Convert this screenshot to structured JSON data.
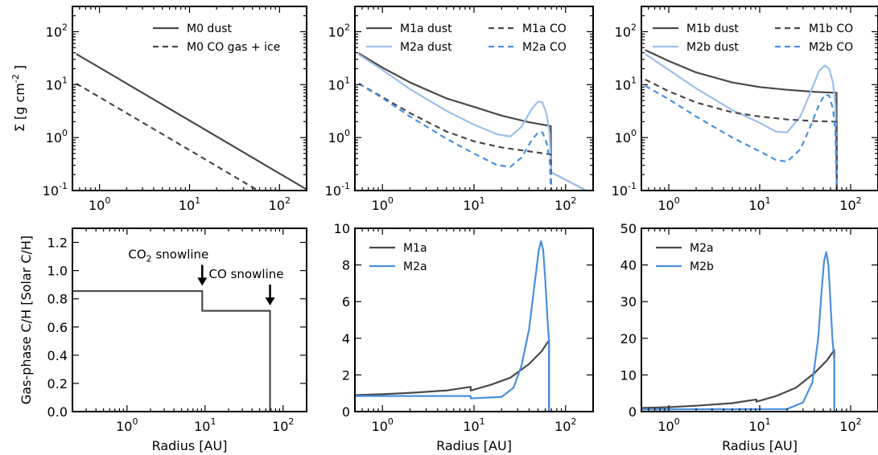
{
  "colors": {
    "dark": "#4a4a4a",
    "light": "#9dc0ea",
    "blue": "#4a8fe0"
  },
  "chart_data": [
    {
      "type": "line",
      "panel": "top-1",
      "xscale": "log",
      "yscale": "log",
      "xlim": [
        0.5,
        200
      ],
      "ylim": [
        0.1,
        300
      ],
      "xticks": [
        1,
        10,
        100
      ],
      "xticklabels": [
        "10^0",
        "10^1",
        "10^2"
      ],
      "yticks": [
        0.1,
        1,
        10,
        100
      ],
      "yticklabels": [
        "10^-1",
        "10^0",
        "10^1",
        "10^2"
      ],
      "ylabel": "Σ [g cm^-2 ]",
      "legend_loc": "upper-right",
      "series": [
        {
          "name": "M0 dust",
          "color": "dark",
          "dash": false,
          "x": [
            0.55,
            1,
            10,
            100,
            200
          ],
          "y": [
            38,
            21,
            2.1,
            0.21,
            0.105
          ]
        },
        {
          "name": "M0 CO gas + ice",
          "color": "dark",
          "dash": true,
          "x": [
            0.55,
            1,
            10,
            60
          ],
          "y": [
            10.5,
            5.8,
            0.58,
            0.096
          ]
        }
      ]
    },
    {
      "type": "line",
      "panel": "top-2",
      "xscale": "log",
      "yscale": "log",
      "xlim": [
        0.5,
        200
      ],
      "ylim": [
        0.1,
        300
      ],
      "xticks": [
        1,
        10,
        100
      ],
      "xticklabels": [
        "10^0",
        "10^1",
        "10^2"
      ],
      "yticks": [
        0.1,
        1,
        10,
        100
      ],
      "yticklabels": [
        "10^-1",
        "10^0",
        "10^1",
        "10^2"
      ],
      "legend_loc": "upper-right",
      "series": [
        {
          "name": "M1a dust",
          "color": "dark",
          "dash": false,
          "x": [
            0.55,
            1,
            2,
            5,
            10,
            20,
            40,
            69,
            69.5,
            100,
            200
          ],
          "y": [
            39,
            21,
            11,
            5.5,
            3.8,
            2.6,
            1.95,
            1.65,
            0.22,
            0.16,
            0.085
          ]
        },
        {
          "name": "M2a dust",
          "color": "light",
          "dash": false,
          "x": [
            0.55,
            1,
            2,
            5,
            10,
            18,
            25,
            33,
            42,
            50,
            56,
            62,
            67,
            69.5,
            100,
            200
          ],
          "y": [
            37,
            19,
            8.2,
            3.2,
            1.75,
            1.15,
            1.05,
            1.6,
            3.3,
            4.8,
            4.6,
            2.8,
            1.2,
            0.22,
            0.16,
            0.085
          ]
        },
        {
          "name": "M1a CO",
          "color": "dark",
          "dash": true,
          "x": [
            0.55,
            1,
            2,
            5,
            10,
            20,
            40,
            69,
            69.5
          ],
          "y": [
            10.5,
            5.8,
            2.9,
            1.3,
            0.85,
            0.65,
            0.55,
            0.48,
            0.09
          ]
        },
        {
          "name": "M2a CO",
          "color": "blue",
          "dash": true,
          "x": [
            0.55,
            1,
            2,
            5,
            10,
            18,
            25,
            33,
            42,
            50,
            56,
            62,
            67,
            69.5
          ],
          "y": [
            10.5,
            5.6,
            2.5,
            0.95,
            0.5,
            0.3,
            0.28,
            0.42,
            0.85,
            1.25,
            1.25,
            0.8,
            0.38,
            0.09
          ]
        }
      ]
    },
    {
      "type": "line",
      "panel": "top-3",
      "xscale": "log",
      "yscale": "log",
      "xlim": [
        0.5,
        200
      ],
      "ylim": [
        0.1,
        300
      ],
      "xticks": [
        1,
        10,
        100
      ],
      "xticklabels": [
        "10^0",
        "10^1",
        "10^2"
      ],
      "yticks": [
        0.1,
        1,
        10,
        100
      ],
      "yticklabels": [
        "10^-1",
        "10^0",
        "10^1",
        "10^2"
      ],
      "legend_loc": "upper-right",
      "series": [
        {
          "name": "M1b dust",
          "color": "dark",
          "dash": false,
          "x": [
            0.55,
            1,
            2,
            5,
            10,
            20,
            40,
            70,
            70.5
          ],
          "y": [
            45,
            28,
            17,
            11,
            9,
            8,
            7.3,
            7,
            0.09
          ]
        },
        {
          "name": "M2b dust",
          "color": "light",
          "dash": false,
          "x": [
            0.55,
            1,
            2,
            5,
            10,
            15,
            20,
            28,
            36,
            45,
            52,
            58,
            64,
            68,
            70.5
          ],
          "y": [
            38,
            19,
            8.5,
            3.3,
            1.9,
            1.3,
            1.25,
            2.5,
            7,
            18,
            23,
            20,
            11,
            4,
            0.09
          ]
        },
        {
          "name": "M1b CO",
          "color": "dark",
          "dash": true,
          "x": [
            0.55,
            1,
            2,
            5,
            10,
            20,
            40,
            70,
            70.5
          ],
          "y": [
            12.5,
            7.5,
            4.6,
            3,
            2.5,
            2.2,
            2.05,
            2,
            0.09
          ]
        },
        {
          "name": "M2b CO",
          "color": "blue",
          "dash": true,
          "x": [
            0.55,
            1,
            2,
            5,
            10,
            15,
            20,
            28,
            36,
            45,
            52,
            58,
            64,
            68,
            70.5
          ],
          "y": [
            9.5,
            5.3,
            2.5,
            1,
            0.55,
            0.38,
            0.35,
            0.6,
            1.6,
            4.2,
            6.5,
            6.2,
            3.5,
            1.2,
            0.09
          ]
        }
      ]
    },
    {
      "type": "line",
      "panel": "bottom-1",
      "xscale": "log",
      "yscale": "linear",
      "xlim": [
        0.2,
        200
      ],
      "ylim": [
        0,
        1.3
      ],
      "xticks": [
        1,
        10,
        100
      ],
      "xticklabels": [
        "10^0",
        "10^1",
        "10^2"
      ],
      "yticks": [
        0,
        0.2,
        0.4,
        0.6,
        0.8,
        1.0,
        1.2
      ],
      "yticklabels": [
        "0.0",
        "0.2",
        "0.4",
        "0.6",
        "0.8",
        "1.0",
        "1.2"
      ],
      "xlabel": "Radius [AU]",
      "ylabel": "Gas-phase C/H [Solar C/H]",
      "annotations": [
        {
          "text": "CO2 snowline",
          "x": 9.2,
          "y_arrow": 0.87
        },
        {
          "text": "CO snowline",
          "x": 68,
          "y_arrow": 0.73
        }
      ],
      "series": [
        {
          "name": "",
          "color": "dark",
          "dash": false,
          "x": [
            0.2,
            9.2,
            9.2,
            68,
            68,
            68.01
          ],
          "y": [
            0.855,
            0.855,
            0.715,
            0.715,
            0.0,
            0.0
          ]
        }
      ]
    },
    {
      "type": "line",
      "panel": "bottom-2",
      "xscale": "log",
      "yscale": "linear",
      "xlim": [
        0.5,
        200
      ],
      "ylim": [
        0,
        10
      ],
      "xticks": [
        1,
        10,
        100
      ],
      "xticklabels": [
        "10^0",
        "10^1",
        "10^2"
      ],
      "yticks": [
        0,
        2,
        4,
        6,
        8,
        10
      ],
      "yticklabels": [
        "0",
        "2",
        "4",
        "6",
        "8",
        "10"
      ],
      "xlabel": "Radius [AU]",
      "legend_loc": "upper-left",
      "series": [
        {
          "name": "M1a",
          "color": "dark",
          "dash": false,
          "x": [
            0.5,
            1,
            2,
            5,
            9.2,
            9.21,
            15,
            25,
            40,
            55,
            66,
            66.01,
            67
          ],
          "y": [
            0.9,
            0.95,
            1.02,
            1.15,
            1.35,
            1.15,
            1.45,
            1.85,
            2.6,
            3.3,
            3.9,
            0,
            0
          ]
        },
        {
          "name": "M2a",
          "color": "blue",
          "dash": false,
          "x": [
            0.5,
            9.2,
            9.21,
            20,
            27,
            33,
            40,
            46,
            51,
            54,
            57,
            60,
            63,
            66,
            66.01,
            67
          ],
          "y": [
            0.85,
            0.85,
            0.72,
            0.8,
            1.3,
            2.5,
            4.5,
            7,
            8.8,
            9.3,
            8.8,
            7.2,
            5.3,
            3.8,
            0,
            0
          ]
        }
      ]
    },
    {
      "type": "line",
      "panel": "bottom-3",
      "xscale": "log",
      "yscale": "linear",
      "xlim": [
        0.5,
        200
      ],
      "ylim": [
        0,
        50
      ],
      "xticks": [
        1,
        10,
        100
      ],
      "xticklabels": [
        "10^0",
        "10^1",
        "10^2"
      ],
      "yticks": [
        0,
        10,
        20,
        30,
        40,
        50
      ],
      "yticklabels": [
        "0",
        "10",
        "20",
        "30",
        "40",
        "50"
      ],
      "xlabel": "Radius [AU]",
      "legend_loc": "upper-left",
      "series": [
        {
          "name": "M2a",
          "color": "dark",
          "dash": false,
          "x": [
            0.5,
            1,
            2,
            5,
            9.2,
            9.21,
            15,
            25,
            40,
            55,
            66,
            66.01,
            67
          ],
          "y": [
            1,
            1.2,
            1.6,
            2.3,
            3.3,
            2.7,
            4.2,
            6.5,
            10.5,
            14,
            16.8,
            0,
            0
          ]
        },
        {
          "name": "M2b",
          "color": "blue",
          "dash": false,
          "x": [
            0.5,
            20,
            30,
            38,
            44,
            48,
            51,
            54,
            57,
            60,
            63,
            66,
            66.01,
            67
          ],
          "y": [
            0.6,
            0.7,
            2.5,
            8,
            20,
            33,
            41,
            43.5,
            40,
            30,
            20,
            14,
            0,
            0
          ]
        }
      ]
    }
  ]
}
